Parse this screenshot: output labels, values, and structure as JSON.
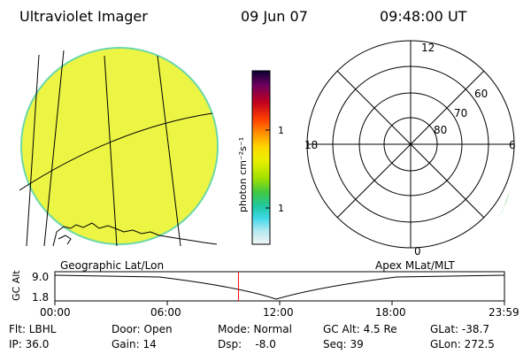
{
  "header": {
    "instrument": "Ultraviolet Imager",
    "date": "09 Jun 07",
    "time": "09:48:00 UT"
  },
  "colorbar": {
    "unit_label": "photon cm⁻²s⁻¹",
    "tick_100": "100",
    "tick_10": "10",
    "scale": "log"
  },
  "polar_plot": {
    "mlt_top": "12",
    "mlt_left": "18",
    "mlt_right": "6",
    "mlt_bottom": "0",
    "lat_60": "60",
    "lat_70": "70",
    "lat_80": "80"
  },
  "altitude_plot": {
    "left_label": "Geographic Lat/Lon",
    "right_label": "Apex MLat/MLT",
    "y_axis_label": "GC Alt",
    "y_top": "9.0",
    "y_bottom": "1.8",
    "x_ticks": [
      "00:00",
      "06:00",
      "12:00",
      "18:00",
      "23:59"
    ],
    "current_time_marker_hours": 9.8
  },
  "status": {
    "flt": "Flt: LBHL",
    "ip": "IP: 36.0",
    "door": "Door: Open",
    "gain": "Gain: 14",
    "mode": "Mode: Normal",
    "dsp": "Dsp:    -8.0",
    "gc_alt": "GC Alt: 4.5 Re",
    "seq": "Seq: 39",
    "glat": "GLat: -38.7",
    "glon": "GLon: 272.5"
  },
  "colors": {
    "disk_fill": "#ecf544",
    "disk_edge": "#6dd8a8",
    "marker": "#ff0000"
  }
}
